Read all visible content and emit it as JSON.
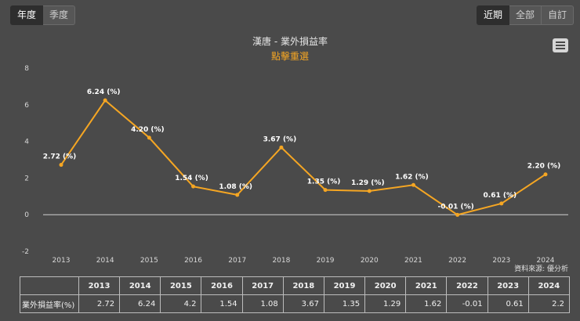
{
  "toolbar": {
    "left_buttons": [
      "年度",
      "季度"
    ],
    "right_buttons": [
      "近期",
      "全部",
      "自訂"
    ]
  },
  "chart_data": {
    "type": "line",
    "title": "漢唐 - 業外損益率",
    "subtitle": "點擊重選",
    "categories": [
      "2013",
      "2014",
      "2015",
      "2016",
      "2017",
      "2018",
      "2019",
      "2020",
      "2021",
      "2022",
      "2023",
      "2024"
    ],
    "series": [
      {
        "name": "業外損益率(%)",
        "values": [
          2.72,
          6.24,
          4.2,
          1.54,
          1.08,
          3.67,
          1.35,
          1.29,
          1.62,
          -0.01,
          0.61,
          2.2
        ],
        "labels": [
          "2.72 (%)",
          "6.24 (%)",
          "4.20 (%)",
          "1.54 (%)",
          "1.08 (%)",
          "3.67 (%)",
          "1.35 (%)",
          "1.29 (%)",
          "1.62 (%)",
          "-0.01 (%)",
          "0.61 (%)",
          "2.20 (%)"
        ]
      }
    ],
    "ylim": [
      -2,
      8
    ],
    "yticks": [
      "-2",
      "0",
      "2",
      "4",
      "6",
      "8"
    ],
    "xlabel": "",
    "ylabel": "",
    "line_color": "#f5a623"
  },
  "source": "資料來源: 優分析",
  "table": {
    "corner": "",
    "headers": [
      "2013",
      "2014",
      "2015",
      "2016",
      "2017",
      "2018",
      "2019",
      "2020",
      "2021",
      "2022",
      "2023",
      "2024"
    ],
    "row_label": "業外損益率(%)",
    "row_values": [
      "2.72",
      "6.24",
      "4.2",
      "1.54",
      "1.08",
      "3.67",
      "1.35",
      "1.29",
      "1.62",
      "-0.01",
      "0.61",
      "2.2"
    ]
  }
}
